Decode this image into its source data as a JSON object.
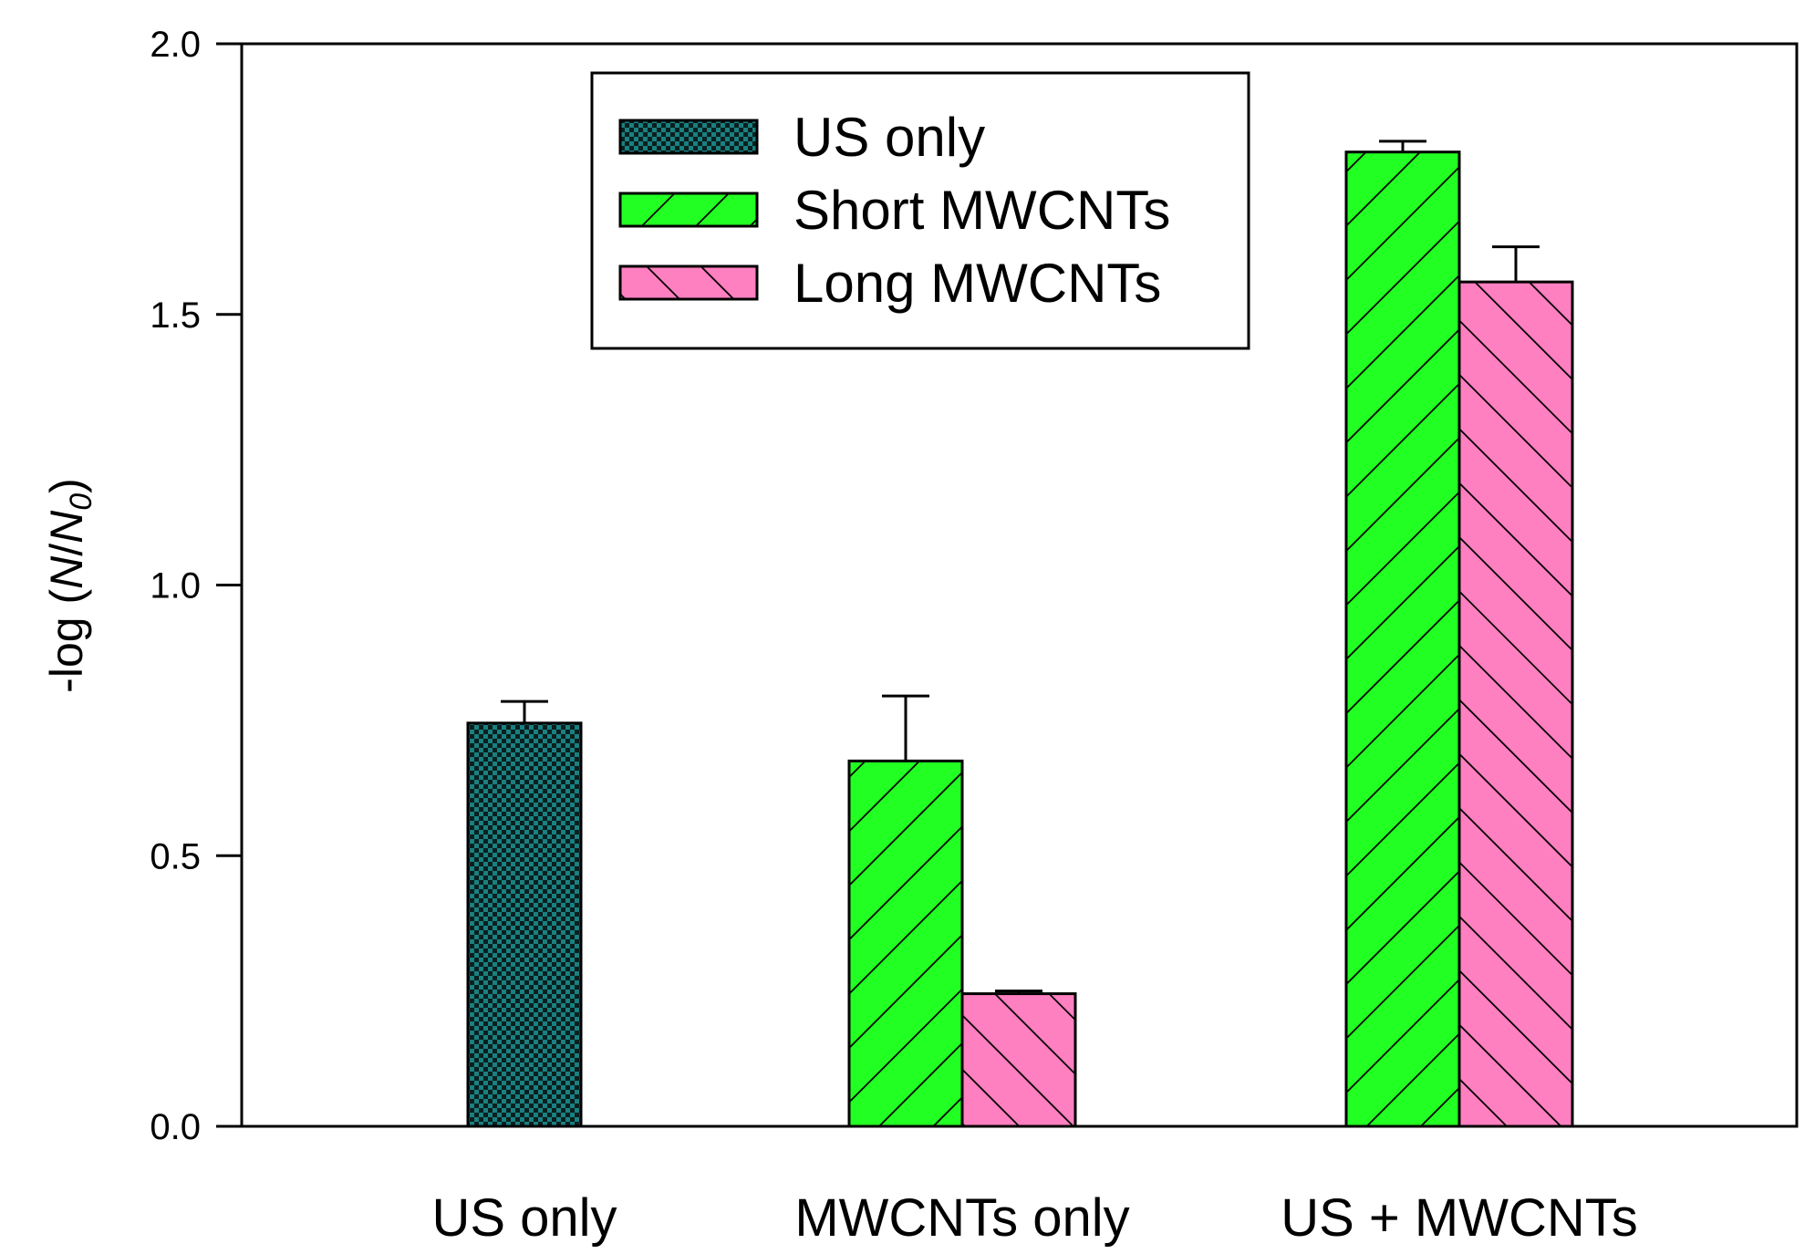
{
  "chart_data": {
    "type": "bar",
    "categories": [
      "US only",
      "MWCNTs only",
      "US + MWCNTs"
    ],
    "series": [
      {
        "name": "US only",
        "color": "#1a8080",
        "pattern": "checker",
        "values": [
          0.745,
          null,
          null
        ],
        "errors": [
          0.04,
          null,
          null
        ]
      },
      {
        "name": "Short MWCNTs",
        "color": "#22ff22",
        "pattern": "forward-diagonal",
        "values": [
          null,
          0.675,
          1.8
        ],
        "errors": [
          null,
          0.12,
          0.02
        ]
      },
      {
        "name": "Long MWCNTs",
        "color": "#ff80c0",
        "pattern": "backward-diagonal",
        "values": [
          null,
          0.245,
          1.56
        ],
        "errors": [
          null,
          0.005,
          0.065
        ]
      }
    ],
    "ylabel": "-log (N/N0)",
    "ylabel_parts": {
      "prefix": "-log (",
      "N": "N",
      "slash": "/",
      "N0": "N",
      "subscript": "0",
      "suffix": ")"
    },
    "ylim": [
      0,
      2.0
    ],
    "yticks": [
      "0.0",
      "0.5",
      "1.0",
      "1.5",
      "2.0"
    ],
    "xlabel": "",
    "title": "",
    "legend_position": "top-center",
    "grid": false
  }
}
